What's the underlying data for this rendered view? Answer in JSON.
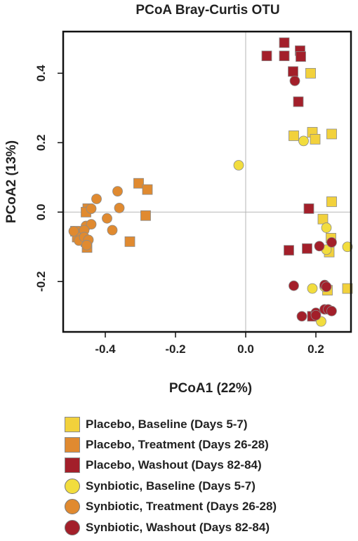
{
  "chart_data": {
    "type": "scatter",
    "title": "PCoA Bray-Curtis OTU",
    "xlabel": "PCoA1 (22%)",
    "ylabel": "PCoA2 (13%)",
    "xlim": [
      -0.52,
      0.3
    ],
    "ylim": [
      -0.345,
      0.52
    ],
    "xticks": [
      -0.4,
      -0.2,
      0.0,
      0.2
    ],
    "xtick_labels": [
      "-0.4",
      "-0.2",
      "0.0",
      "0.2"
    ],
    "yticks": [
      -0.2,
      0.0,
      0.2,
      0.4
    ],
    "ytick_labels": [
      "-0.2",
      "0.0",
      "0.2",
      "0.4"
    ],
    "reference_lines": {
      "x": 0,
      "y": 0
    },
    "grid": false,
    "legend_position": "bottom",
    "series": [
      {
        "name": "Placebo, Baseline (Days 5-7)",
        "marker": "square",
        "color": "#f2d13c",
        "points": [
          [
            0.185,
            0.4
          ],
          [
            0.137,
            0.22
          ],
          [
            0.19,
            0.23
          ],
          [
            0.198,
            0.21
          ],
          [
            0.245,
            0.225
          ],
          [
            0.245,
            0.03
          ],
          [
            0.22,
            -0.02
          ],
          [
            0.243,
            -0.075
          ],
          [
            0.238,
            -0.115
          ],
          [
            0.233,
            -0.225
          ],
          [
            0.29,
            -0.22
          ]
        ]
      },
      {
        "name": "Placebo, Treatment (Days 26-28)",
        "marker": "square",
        "color": "#e08a30",
        "points": [
          [
            -0.305,
            0.083
          ],
          [
            -0.28,
            0.065
          ],
          [
            -0.45,
            0.01
          ],
          [
            -0.285,
            -0.01
          ],
          [
            -0.485,
            -0.055
          ],
          [
            -0.47,
            -0.065
          ],
          [
            -0.48,
            -0.072
          ],
          [
            -0.455,
            -0.085
          ],
          [
            -0.452,
            -0.102
          ],
          [
            -0.33,
            -0.085
          ],
          [
            -0.455,
            0.0
          ]
        ]
      },
      {
        "name": "Placebo, Washout (Days 82-84)",
        "marker": "square",
        "color": "#a31f2a",
        "points": [
          [
            0.11,
            0.488
          ],
          [
            0.155,
            0.465
          ],
          [
            0.06,
            0.45
          ],
          [
            0.11,
            0.45
          ],
          [
            0.157,
            0.448
          ],
          [
            0.135,
            0.405
          ],
          [
            0.15,
            0.318
          ],
          [
            0.18,
            0.01
          ],
          [
            0.123,
            -0.11
          ],
          [
            0.175,
            -0.105
          ],
          [
            0.19,
            -0.3
          ]
        ]
      },
      {
        "name": "Synbiotic, Baseline (Days 5-7)",
        "marker": "circle",
        "color": "#f2dd3e",
        "points": [
          [
            -0.02,
            0.135
          ],
          [
            0.165,
            0.205
          ],
          [
            0.23,
            -0.045
          ],
          [
            0.23,
            -0.108
          ],
          [
            0.29,
            -0.1
          ],
          [
            0.19,
            -0.22
          ],
          [
            0.225,
            -0.215
          ],
          [
            0.215,
            -0.315
          ]
        ]
      },
      {
        "name": "Synbiotic, Treatment (Days 26-28)",
        "marker": "circle",
        "color": "#e08a30",
        "points": [
          [
            -0.425,
            0.038
          ],
          [
            -0.365,
            0.06
          ],
          [
            -0.36,
            0.012
          ],
          [
            -0.44,
            0.01
          ],
          [
            -0.395,
            -0.018
          ],
          [
            -0.38,
            -0.052
          ],
          [
            -0.455,
            -0.04
          ],
          [
            -0.44,
            -0.035
          ],
          [
            -0.49,
            -0.055
          ],
          [
            -0.46,
            -0.052
          ],
          [
            -0.475,
            -0.082
          ],
          [
            -0.46,
            -0.072
          ],
          [
            -0.448,
            -0.08
          ],
          [
            -0.453,
            -0.095
          ]
        ]
      },
      {
        "name": "Synbiotic, Washout (Days 82-84)",
        "marker": "circle",
        "color": "#a31f2a",
        "points": [
          [
            0.14,
            0.378
          ],
          [
            0.245,
            -0.087
          ],
          [
            0.21,
            -0.098
          ],
          [
            0.137,
            -0.212
          ],
          [
            0.225,
            -0.21
          ],
          [
            0.23,
            -0.215
          ],
          [
            0.16,
            -0.3
          ],
          [
            0.2,
            -0.29
          ],
          [
            0.225,
            -0.28
          ],
          [
            0.235,
            -0.28
          ],
          [
            0.245,
            -0.285
          ],
          [
            0.2,
            -0.297
          ]
        ]
      }
    ]
  }
}
